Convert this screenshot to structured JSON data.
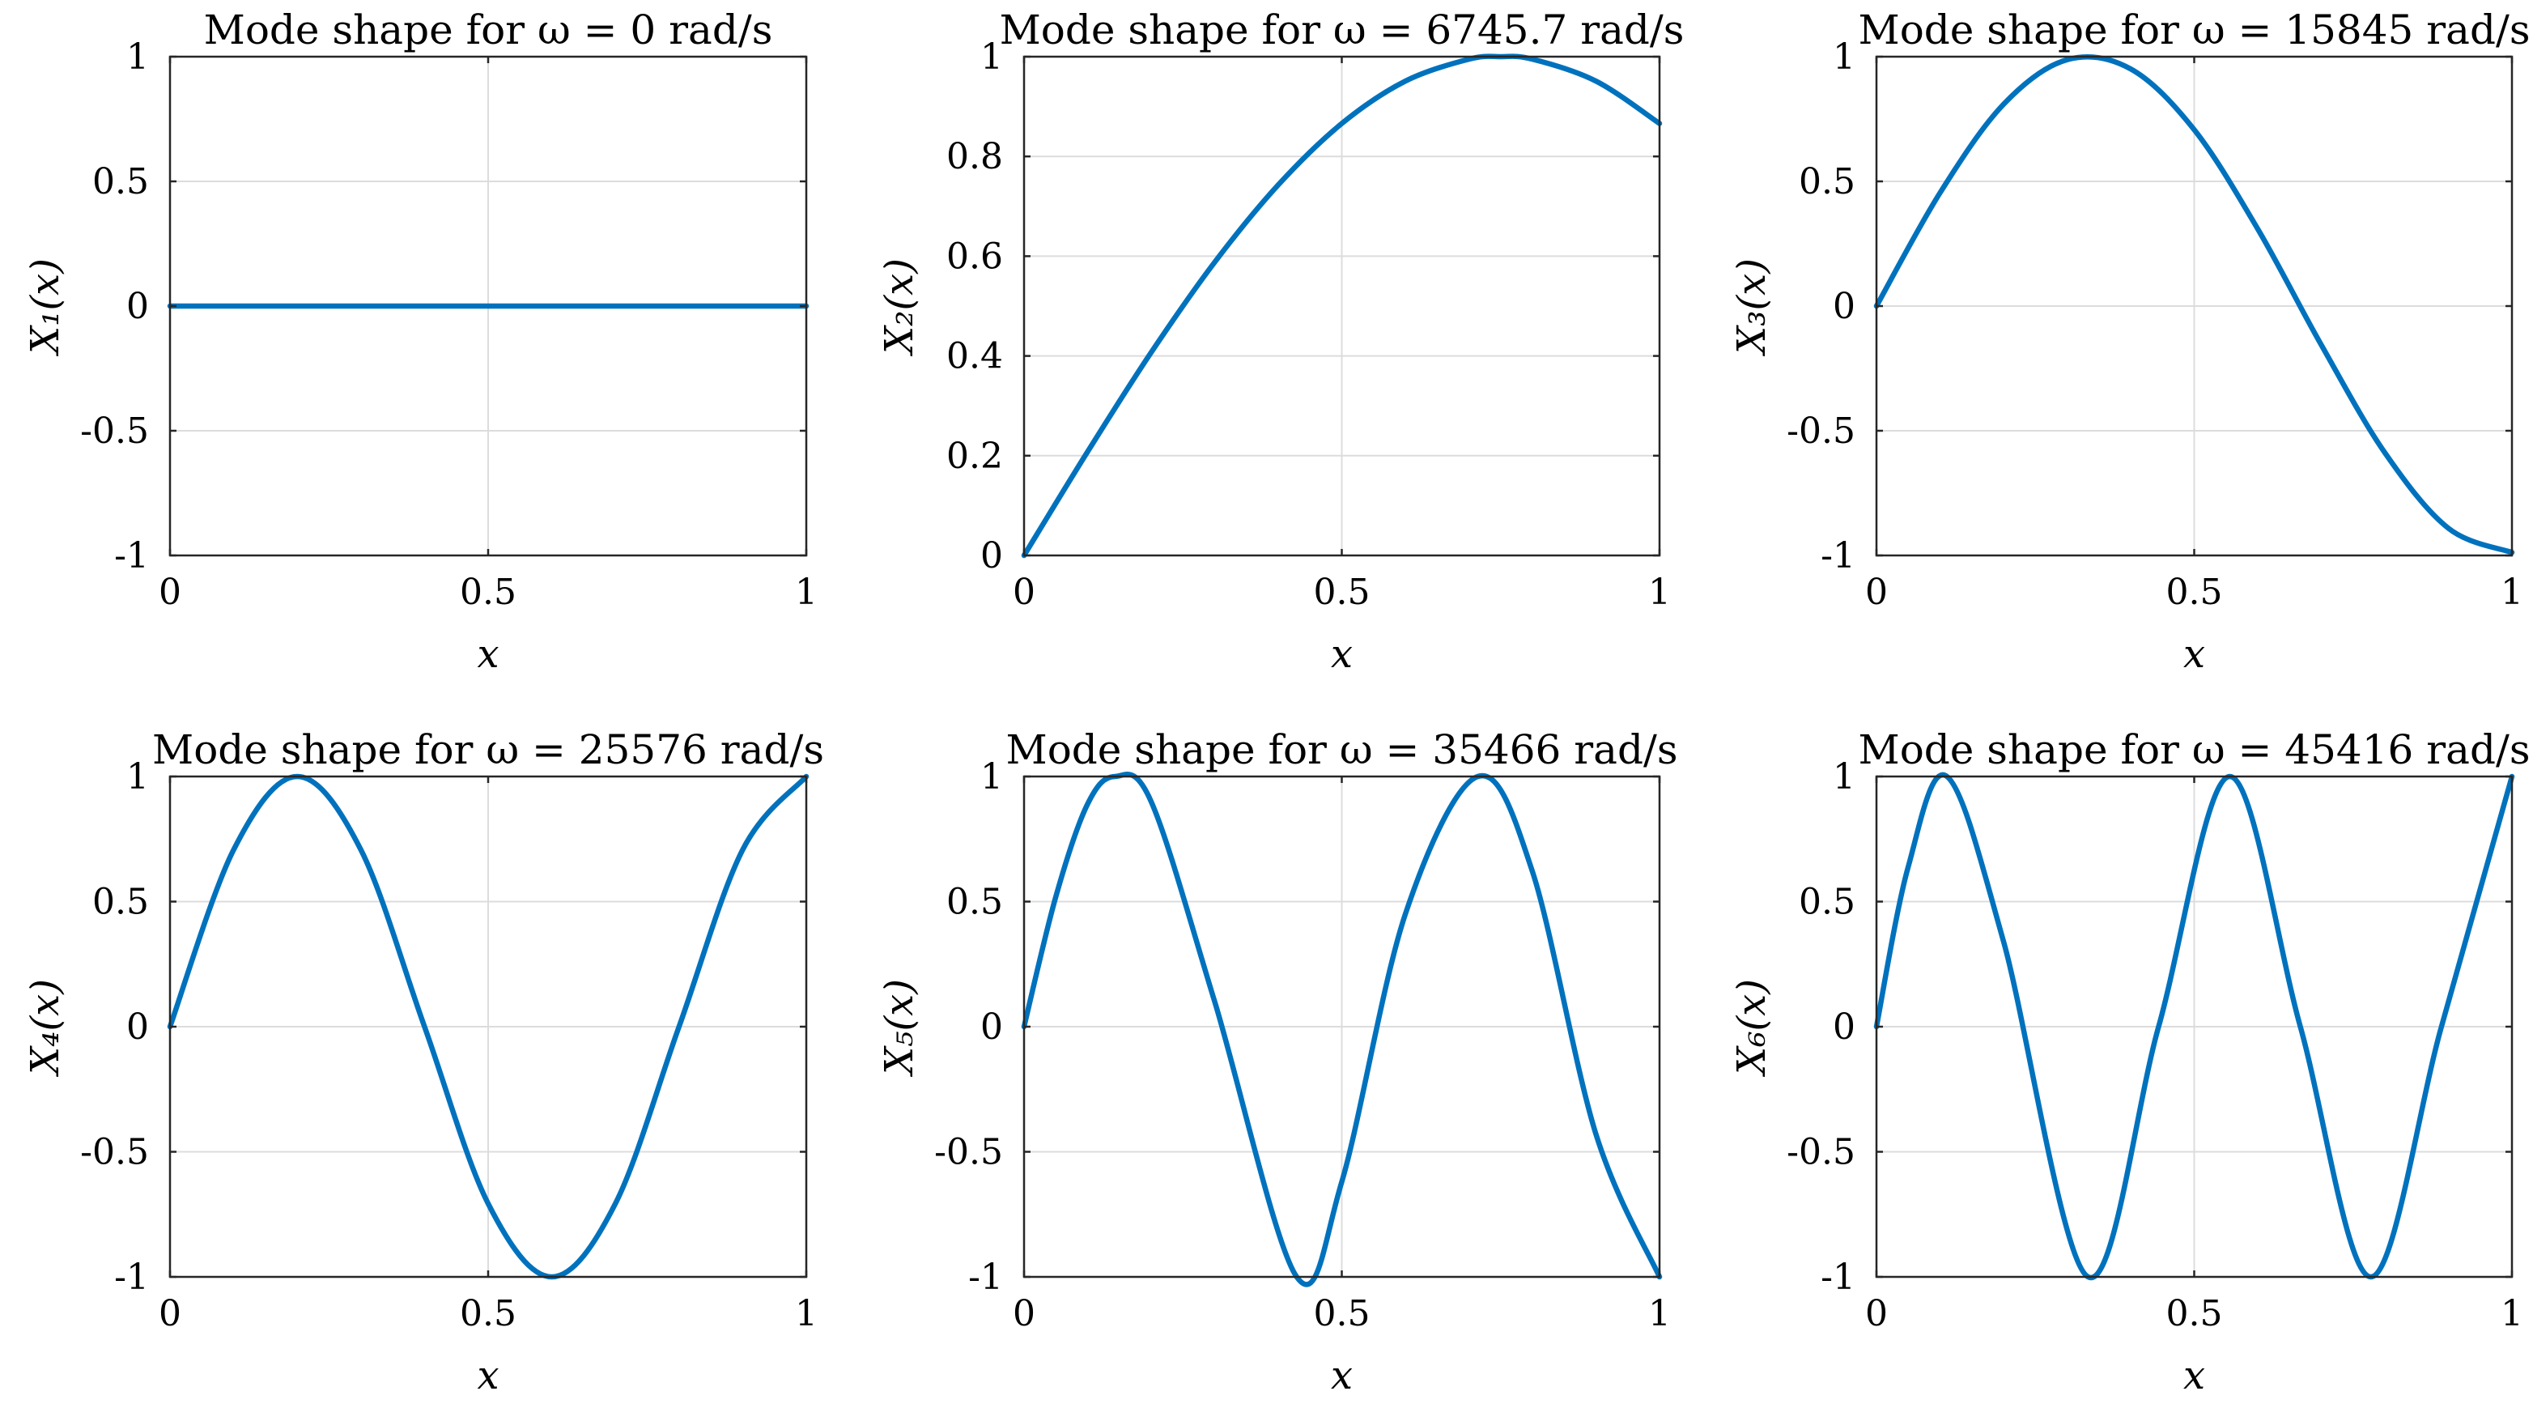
{
  "chart_data": [
    {
      "type": "line",
      "title": "Mode shape for ω = 0 rad/s",
      "omega": 0,
      "xlabel": "x",
      "ylabel": "X₁(x)",
      "xlim": [
        0,
        1
      ],
      "ylim": [
        -1,
        1
      ],
      "xticks": [
        0,
        0.5,
        1
      ],
      "xtick_labels": [
        "0",
        "0.5",
        "1"
      ],
      "yticks": [
        -1,
        -0.5,
        0,
        0.5,
        1
      ],
      "ytick_labels": [
        "-1",
        "-0.5",
        "0",
        "0.5",
        "1"
      ],
      "grid": true,
      "series": [
        {
          "x": [
            0,
            0.25,
            0.5,
            0.75,
            1
          ],
          "y": [
            0,
            0,
            0,
            0,
            0
          ]
        }
      ]
    },
    {
      "type": "line",
      "title": "Mode shape for ω = 6745.7 rad/s",
      "omega": 6745.7,
      "xlabel": "x",
      "ylabel": "X₂(x)",
      "xlim": [
        0,
        1
      ],
      "ylim": [
        0,
        1
      ],
      "xticks": [
        0,
        0.5,
        1
      ],
      "xtick_labels": [
        "0",
        "0.5",
        "1"
      ],
      "yticks": [
        0,
        0.2,
        0.4,
        0.6,
        0.8,
        1
      ],
      "ytick_labels": [
        "0",
        "0.2",
        "0.4",
        "0.6",
        "0.8",
        "1"
      ],
      "grid": true,
      "series": [
        {
          "x": [
            0,
            0.1,
            0.2,
            0.3,
            0.4,
            0.5,
            0.6,
            0.7,
            0.75,
            0.8,
            0.9,
            1
          ],
          "y": [
            0,
            0.208,
            0.407,
            0.588,
            0.743,
            0.866,
            0.951,
            0.995,
            1.0,
            0.995,
            0.951,
            0.866
          ]
        }
      ]
    },
    {
      "type": "line",
      "title": "Mode shape for ω = 15845 rad/s",
      "omega": 15845,
      "xlabel": "x",
      "ylabel": "X₃(x)",
      "xlim": [
        0,
        1
      ],
      "ylim": [
        -1,
        1
      ],
      "xticks": [
        0,
        0.5,
        1
      ],
      "xtick_labels": [
        "0",
        "0.5",
        "1"
      ],
      "yticks": [
        -1,
        -0.5,
        0,
        0.5,
        1
      ],
      "ytick_labels": [
        "-1",
        "-0.5",
        "0",
        "0.5",
        "1"
      ],
      "grid": true,
      "series": [
        {
          "x": [
            0,
            0.1,
            0.2,
            0.3,
            0.4,
            0.5,
            0.6,
            0.7,
            0.8,
            0.9,
            1
          ],
          "y": [
            0,
            0.454,
            0.809,
            0.988,
            0.951,
            0.707,
            0.309,
            -0.156,
            -0.588,
            -0.891,
            -0.988
          ]
        }
      ]
    },
    {
      "type": "line",
      "title": "Mode shape for ω = 25576 rad/s",
      "omega": 25576,
      "xlabel": "x",
      "ylabel": "X₄(x)",
      "xlim": [
        0,
        1
      ],
      "ylim": [
        -1,
        1
      ],
      "xticks": [
        0,
        0.5,
        1
      ],
      "xtick_labels": [
        "0",
        "0.5",
        "1"
      ],
      "yticks": [
        -1,
        -0.5,
        0,
        0.5,
        1
      ],
      "ytick_labels": [
        "-1",
        "-0.5",
        "0",
        "0.5",
        "1"
      ],
      "grid": true,
      "series": [
        {
          "x": [
            0,
            0.1,
            0.2,
            0.3,
            0.4,
            0.5,
            0.6,
            0.7,
            0.8,
            0.9,
            1
          ],
          "y": [
            0,
            0.707,
            1.0,
            0.707,
            0.0,
            -0.707,
            -1.0,
            -0.707,
            0.0,
            0.707,
            1.0
          ]
        }
      ]
    },
    {
      "type": "line",
      "title": "Mode shape for ω = 35466 rad/s",
      "omega": 35466,
      "xlabel": "x",
      "ylabel": "X₅(x)",
      "xlim": [
        0,
        1
      ],
      "ylim": [
        -1,
        1
      ],
      "xticks": [
        0,
        0.5,
        1
      ],
      "xtick_labels": [
        "0",
        "0.5",
        "1"
      ],
      "yticks": [
        -1,
        -0.5,
        0,
        0.5,
        1
      ],
      "ytick_labels": [
        "-1",
        "-0.5",
        "0",
        "0.5",
        "1"
      ],
      "grid": true,
      "series": [
        {
          "x": [
            0,
            0.05,
            0.1,
            0.143,
            0.2,
            0.3,
            0.429,
            0.5,
            0.6,
            0.714,
            0.8,
            0.9,
            1
          ],
          "y": [
            0,
            0.52,
            0.89,
            1.0,
            0.9,
            0.1,
            -1.0,
            -0.62,
            0.45,
            1.0,
            0.62,
            -0.43,
            -1.0
          ]
        }
      ]
    },
    {
      "type": "line",
      "title": "Mode shape for ω = 45416 rad/s",
      "omega": 45416,
      "xlabel": "x",
      "ylabel": "X₆(x)",
      "xlim": [
        0,
        1
      ],
      "ylim": [
        -1,
        1
      ],
      "xticks": [
        0,
        0.5,
        1
      ],
      "xtick_labels": [
        "0",
        "0.5",
        "1"
      ],
      "yticks": [
        -1,
        -0.5,
        0,
        0.5,
        1
      ],
      "ytick_labels": [
        "-1",
        "-0.5",
        "0",
        "0.5",
        "1"
      ],
      "grid": true,
      "series": [
        {
          "x": [
            0,
            0.05,
            0.111,
            0.2,
            0.333,
            0.444,
            0.556,
            0.667,
            0.778,
            0.889,
            1
          ],
          "y": [
            0,
            0.64,
            1.0,
            0.34,
            -1.0,
            0.0,
            1.0,
            0.0,
            -1.0,
            0.0,
            1.0
          ]
        }
      ]
    }
  ]
}
